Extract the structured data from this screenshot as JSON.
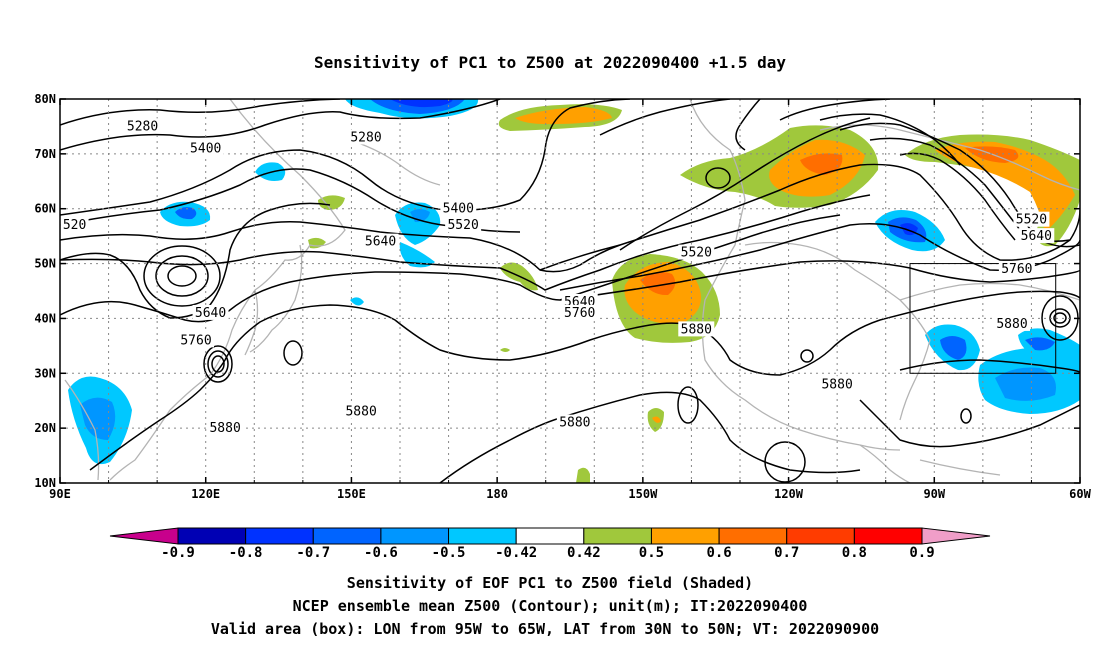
{
  "title": "Sensitivity of PC1 to Z500 at 2022090400 +1.5 day",
  "footer": {
    "line1": "Sensitivity of EOF PC1 to Z500 field (Shaded)",
    "line2": "NCEP ensemble mean Z500 (Contour); unit(m); IT:2022090400",
    "line3": "Valid area (box): LON from 95W to 65W, LAT from 30N to 50N; VT: 2022090900"
  },
  "map": {
    "lon_range": [
      90,
      300
    ],
    "lat_range": [
      10,
      80
    ],
    "lon_ticks": [
      {
        "lon": 90,
        "label": "90E"
      },
      {
        "lon": 120,
        "label": "120E"
      },
      {
        "lon": 150,
        "label": "150E"
      },
      {
        "lon": 180,
        "label": "180"
      },
      {
        "lon": 210,
        "label": "150W"
      },
      {
        "lon": 240,
        "label": "120W"
      },
      {
        "lon": 270,
        "label": "90W"
      },
      {
        "lon": 300,
        "label": "60W"
      }
    ],
    "lat_ticks": [
      {
        "lat": 80,
        "label": "80N"
      },
      {
        "lat": 70,
        "label": "70N"
      },
      {
        "lat": 60,
        "label": "60N"
      },
      {
        "lat": 50,
        "label": "50N"
      },
      {
        "lat": 40,
        "label": "40N"
      },
      {
        "lat": 30,
        "label": "30N"
      },
      {
        "lat": 20,
        "label": "20N"
      },
      {
        "lat": 10,
        "label": "10N"
      }
    ],
    "valid_box": {
      "lon_min": 265,
      "lon_max": 295,
      "lat_min": 30,
      "lat_max": 50
    },
    "contour_labels": [
      {
        "text": "5280",
        "lon": 107,
        "lat": 75
      },
      {
        "text": "5400",
        "lon": 120,
        "lat": 71
      },
      {
        "text": "520",
        "lon": 93,
        "lat": 57
      },
      {
        "text": "5640",
        "lon": 121,
        "lat": 41
      },
      {
        "text": "5760",
        "lon": 118,
        "lat": 36
      },
      {
        "text": "5880",
        "lon": 124,
        "lat": 20
      },
      {
        "text": "5280",
        "lon": 153,
        "lat": 73
      },
      {
        "text": "5640",
        "lon": 156,
        "lat": 54
      },
      {
        "text": "5400",
        "lon": 172,
        "lat": 60
      },
      {
        "text": "5520",
        "lon": 173,
        "lat": 57
      },
      {
        "text": "5880",
        "lon": 152,
        "lat": 23
      },
      {
        "text": "5880",
        "lon": 196,
        "lat": 21
      },
      {
        "text": "5520",
        "lon": 221,
        "lat": 52
      },
      {
        "text": "5640",
        "lon": 197,
        "lat": 43
      },
      {
        "text": "5760",
        "lon": 197,
        "lat": 41
      },
      {
        "text": "5880",
        "lon": 221,
        "lat": 38
      },
      {
        "text": "5880",
        "lon": 250,
        "lat": 28
      },
      {
        "text": "5520",
        "lon": 290,
        "lat": 58
      },
      {
        "text": "5640",
        "lon": 291,
        "lat": 55
      },
      {
        "text": "5760",
        "lon": 287,
        "lat": 49
      },
      {
        "text": "5880",
        "lon": 286,
        "lat": 39
      }
    ]
  },
  "colorbar": {
    "labels": [
      "-0.9",
      "-0.8",
      "-0.7",
      "-0.6",
      "-0.5",
      "-0.42",
      "0.42",
      "0.5",
      "0.6",
      "0.7",
      "0.8",
      "0.9"
    ],
    "colors": [
      "#0000b4",
      "#0032ff",
      "#0064ff",
      "#0096ff",
      "#00c8ff",
      "#ffffff",
      "#a0c83c",
      "#ffa000",
      "#ff6e00",
      "#ff3c00",
      "#ff0000"
    ],
    "low_extend_color": "#c8008c",
    "high_extend_color": "#f09ec8"
  }
}
